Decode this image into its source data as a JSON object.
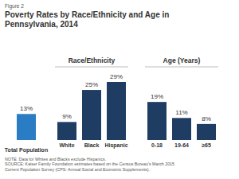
{
  "chart_data": {
    "type": "bar",
    "figure_label": "Figure 2",
    "title": "Poverty Rates by Race/Ethnicity and Age in Pennsylvania, 2014",
    "categories": [
      "Total Population",
      "White",
      "Black",
      "Hispanic",
      "0-18",
      "19-64",
      "≥65"
    ],
    "values": [
      13,
      9,
      25,
      29,
      19,
      11,
      8
    ],
    "value_labels": [
      "13%",
      "9%",
      "25%",
      "29%",
      "19%",
      "11%",
      "8%"
    ],
    "colors": [
      "#2a7cc4",
      "#1f3c63",
      "#1f3c63",
      "#1f3c63",
      "#1f3c63",
      "#1f3c63",
      "#1f3c63"
    ],
    "groups": [
      {
        "name": "Race/Ethnicity",
        "categories": [
          "White",
          "Black",
          "Hispanic"
        ]
      },
      {
        "name": "Age (Years)",
        "categories": [
          "0-18",
          "19-64",
          "≥65"
        ]
      }
    ],
    "data_labels": true,
    "tick_labels": false,
    "grid": false,
    "notes": [
      "NOTE: Data for Whites and Blacks exclude Hispanics.",
      "SOURCE: Kaiser Family Foundation estimates based on the Census Bureau's March 2015 Current Population Survey (CPS: Annual Social and Economic Supplements)."
    ]
  }
}
